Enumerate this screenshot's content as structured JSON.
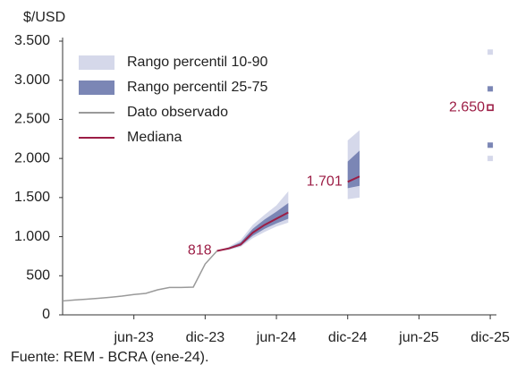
{
  "chart_data": {
    "type": "fan",
    "y_axis_title": "$/USD",
    "source": "Fuente: REM - BCRA (ene-24).",
    "categories": [
      null,
      null,
      null,
      null,
      null,
      null,
      "jun-23",
      null,
      null,
      null,
      null,
      null,
      "dic-23",
      null,
      null,
      null,
      null,
      null,
      "jun-24",
      null,
      null,
      null,
      null,
      null,
      "dic-24",
      null,
      null,
      null,
      null,
      null,
      "jun-25",
      null,
      null,
      null,
      null,
      null,
      "dic-25"
    ],
    "ylim": [
      0,
      3500
    ],
    "yticks": [
      0,
      500,
      {
        "value": 1000,
        "label": "1.000"
      },
      {
        "value": 1500,
        "label": "1.500"
      },
      {
        "value": 2000,
        "label": "2.000"
      },
      {
        "value": 2500,
        "label": "2.500"
      },
      {
        "value": 3000,
        "label": "3.000"
      },
      {
        "value": 3500,
        "label": "3.500"
      }
    ],
    "series": [
      {
        "name": "Rango percentil 10-90",
        "kind": "band",
        "color": "#d5d8ea",
        "low": [
          null,
          null,
          null,
          null,
          null,
          null,
          null,
          null,
          null,
          null,
          null,
          null,
          null,
          818,
          830,
          870,
          980,
          1060,
          1130,
          1180,
          null,
          null,
          null,
          null,
          1480,
          1500,
          null,
          null,
          null,
          null,
          null,
          null,
          null,
          null,
          null,
          null,
          2000
        ],
        "high": [
          null,
          null,
          null,
          null,
          null,
          null,
          null,
          null,
          null,
          null,
          null,
          null,
          null,
          818,
          870,
          960,
          1150,
          1280,
          1400,
          1580,
          null,
          null,
          null,
          null,
          2230,
          2360,
          null,
          null,
          null,
          null,
          null,
          null,
          null,
          null,
          null,
          null,
          3360
        ]
      },
      {
        "name": "Rango percentil 25-75",
        "kind": "band",
        "color": "#7b86b5",
        "low": [
          null,
          null,
          null,
          null,
          null,
          null,
          null,
          null,
          null,
          null,
          null,
          null,
          null,
          818,
          840,
          885,
          1010,
          1100,
          1170,
          1230,
          null,
          null,
          null,
          null,
          1620,
          1650,
          null,
          null,
          null,
          null,
          null,
          null,
          null,
          null,
          null,
          null,
          2170
        ],
        "high": [
          null,
          null,
          null,
          null,
          null,
          null,
          null,
          null,
          null,
          null,
          null,
          null,
          null,
          818,
          860,
          930,
          1100,
          1220,
          1320,
          1430,
          null,
          null,
          null,
          null,
          1960,
          2100,
          null,
          null,
          null,
          null,
          null,
          null,
          null,
          null,
          null,
          null,
          2890
        ]
      },
      {
        "name": "Dato observado",
        "kind": "line",
        "color": "#9a9a9a",
        "values": [
          178,
          190,
          200,
          212,
          225,
          240,
          260,
          275,
          320,
          350,
          350,
          355,
          650,
          818,
          null,
          null,
          null,
          null,
          null,
          null,
          null,
          null,
          null,
          null,
          null,
          null,
          null,
          null,
          null,
          null,
          null,
          null,
          null,
          null,
          null,
          null,
          null
        ]
      },
      {
        "name": "Mediana",
        "kind": "line",
        "color": "#9c1d45",
        "values": [
          null,
          null,
          null,
          null,
          null,
          null,
          null,
          null,
          null,
          null,
          null,
          null,
          null,
          818,
          850,
          900,
          1050,
          1150,
          1230,
          1310,
          null,
          null,
          null,
          null,
          1701,
          1770,
          null,
          null,
          null,
          null,
          null,
          null,
          null,
          null,
          null,
          null,
          2650
        ],
        "value_labels": [
          null,
          null,
          null,
          null,
          null,
          null,
          null,
          null,
          null,
          null,
          null,
          null,
          null,
          "818",
          null,
          null,
          null,
          null,
          null,
          null,
          null,
          null,
          null,
          null,
          "1.701",
          null,
          null,
          null,
          null,
          null,
          null,
          null,
          null,
          null,
          null,
          null,
          "2.650"
        ]
      }
    ]
  }
}
